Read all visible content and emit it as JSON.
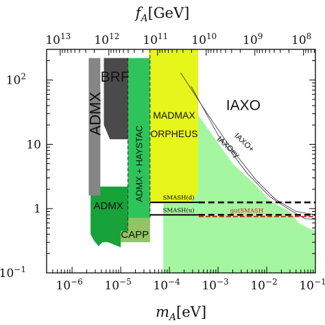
{
  "chart_data": {
    "type": "area",
    "x_axis": {
      "label_symbol": "m",
      "label_sub": "A",
      "label_unit": "[eV]",
      "scale": "log",
      "range": [
        3e-07,
        0.1
      ],
      "ticks": [
        {
          "value": 1e-06,
          "base": "10",
          "exp": "−6"
        },
        {
          "value": 1e-05,
          "base": "10",
          "exp": "−5"
        },
        {
          "value": 0.0001,
          "base": "10",
          "exp": "−4"
        },
        {
          "value": 0.001,
          "base": "10",
          "exp": "−3"
        },
        {
          "value": 0.01,
          "base": "10",
          "exp": "−2"
        },
        {
          "value": 0.1,
          "base": "10",
          "exp": "−1"
        }
      ]
    },
    "top_axis": {
      "label_symbol": "f",
      "label_sub": "A",
      "label_unit": "[GeV]",
      "scale": "log",
      "ticks": [
        {
          "value": 10000000000000.0,
          "base": "10",
          "exp": "13"
        },
        {
          "value": 1000000000000.0,
          "base": "10",
          "exp": "12"
        },
        {
          "value": 100000000000.0,
          "base": "10",
          "exp": "11"
        },
        {
          "value": 10000000000.0,
          "base": "10",
          "exp": "10"
        },
        {
          "value": 1000000000.0,
          "base": "10",
          "exp": "9"
        },
        {
          "value": 100000000.0,
          "base": "10",
          "exp": "8"
        }
      ]
    },
    "y_axis": {
      "scale": "log",
      "range": [
        0.1,
        300
      ],
      "ticks": [
        {
          "value": 100,
          "text": "",
          "base": "10",
          "exp": "2"
        },
        {
          "value": 10,
          "text": "10",
          "base": "",
          "exp": ""
        },
        {
          "value": 1,
          "text": "1",
          "base": "",
          "exp": ""
        },
        {
          "value": 0.1,
          "text": "",
          "base": "10",
          "exp": "−1"
        }
      ]
    },
    "regions": [
      {
        "name": "IAXO",
        "label": "IAXO",
        "color": "#a4f7a0",
        "points": [
          [
            7.5e-05,
            300
          ],
          [
            0.0001,
            130
          ],
          [
            0.0002,
            60
          ],
          [
            0.0006,
            18
          ],
          [
            0.002,
            5
          ],
          [
            0.006,
            2.3
          ],
          [
            0.012,
            1.3
          ],
          [
            0.03,
            0.9
          ],
          [
            0.045,
            0.6
          ],
          [
            0.07,
            0.5
          ],
          [
            0.1,
            0.45
          ],
          [
            0.1,
            0.1
          ],
          [
            7.5e-05,
            0.1
          ]
        ]
      },
      {
        "name": "MADMAX",
        "label": "MADMAX",
        "label2": "ORPHEUS",
        "color": "#e6f51a",
        "points": [
          [
            3.8e-05,
            300
          ],
          [
            0.00039,
            300
          ],
          [
            0.00039,
            1.8
          ],
          [
            0.00026,
            1.2
          ],
          [
            3.8e-05,
            1.2
          ]
        ]
      },
      {
        "name": "ADMX-HAYSTAC",
        "label": "ADMX + HAYSTAC",
        "color": "#2fc35b",
        "points": [
          [
            1.4e-05,
            220
          ],
          [
            4e-05,
            220
          ],
          [
            4e-05,
            0.45
          ],
          [
            1.4e-05,
            0.45
          ]
        ]
      },
      {
        "name": "CAPP",
        "label": "CAPP",
        "color": "#92c463",
        "points": [
          [
            1e-05,
            0.72
          ],
          [
            4e-05,
            0.72
          ],
          [
            4e-05,
            0.3
          ],
          [
            1e-05,
            0.3
          ]
        ]
      },
      {
        "name": "ADMX-projected",
        "label": "ADMX",
        "color": "#18a23a",
        "points": [
          [
            2.4e-06,
            2.2
          ],
          [
            1.4e-05,
            2.2
          ],
          [
            1.4e-05,
            0.45
          ],
          [
            1e-05,
            0.45
          ],
          [
            1e-05,
            0.25
          ],
          [
            5.5e-06,
            0.3
          ],
          [
            4.2e-06,
            0.3
          ],
          [
            3.5e-06,
            0.26
          ],
          [
            2.8e-06,
            0.32
          ],
          [
            2.4e-06,
            0.4
          ]
        ]
      },
      {
        "name": "BRF",
        "label": "BRF",
        "color": "#4a4a4a",
        "points": [
          [
            4.5e-06,
            220
          ],
          [
            1.4e-05,
            220
          ],
          [
            1.4e-05,
            12
          ],
          [
            6e-06,
            12
          ],
          [
            4.5e-06,
            20
          ]
        ]
      },
      {
        "name": "ADMX",
        "label": "ADMX",
        "color": "#858585",
        "points": [
          [
            2.2e-06,
            220
          ],
          [
            3.8e-06,
            220
          ],
          [
            3.8e-06,
            1.6
          ],
          [
            2.2e-06,
            1.6
          ]
        ]
      }
    ],
    "outlines": [
      {
        "name": "IAXOey",
        "label": "IAXOey",
        "color": "#444444",
        "points": [
          [
            0.00028,
            80
          ],
          [
            0.001,
            14
          ],
          [
            0.004,
            3.5
          ],
          [
            0.012,
            1.5
          ],
          [
            0.03,
            0.95
          ],
          [
            0.06,
            0.7
          ],
          [
            0.1,
            0.68
          ]
        ]
      },
      {
        "name": "IAXO+",
        "label": "IAXO+",
        "color": "#444444",
        "points": [
          [
            0.00017,
            130
          ],
          [
            0.0006,
            30
          ],
          [
            0.002,
            8
          ],
          [
            0.006,
            2.8
          ],
          [
            0.015,
            1.4
          ],
          [
            0.04,
            0.9
          ],
          [
            0.1,
            0.8
          ]
        ]
      }
    ],
    "lines": [
      {
        "name": "SMASH(d)",
        "label": "SMASH(d)",
        "y": 1.25,
        "xmin": 4e-05,
        "xmax": 0.1,
        "solid_until": 0.0004,
        "color": "#000000"
      },
      {
        "name": "SMASH(u)",
        "label": "SMASH(u)",
        "y": 0.8,
        "xmin": 4e-05,
        "xmax": 0.1,
        "solid_until": 0.0004,
        "color": "#000000"
      },
      {
        "name": "gutSMASH",
        "label": "gutSMASH",
        "y": 0.75,
        "xmin": 0.0004,
        "xmax": 0.1,
        "color": "#e01010"
      }
    ]
  }
}
